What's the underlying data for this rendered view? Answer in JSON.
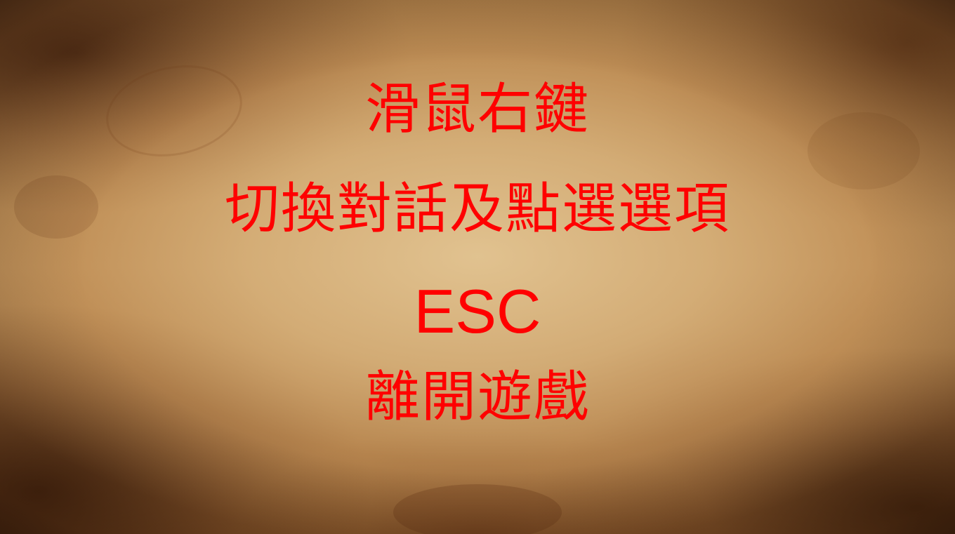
{
  "instructions": {
    "line1": "滑鼠右鍵",
    "line2": "切換對話及點選選項",
    "line3": "ESC",
    "line4": "離開遊戲"
  },
  "colors": {
    "text": "#ff0000",
    "parchment": "#c9a46e",
    "burnt_edge": "#3c1e0a"
  }
}
